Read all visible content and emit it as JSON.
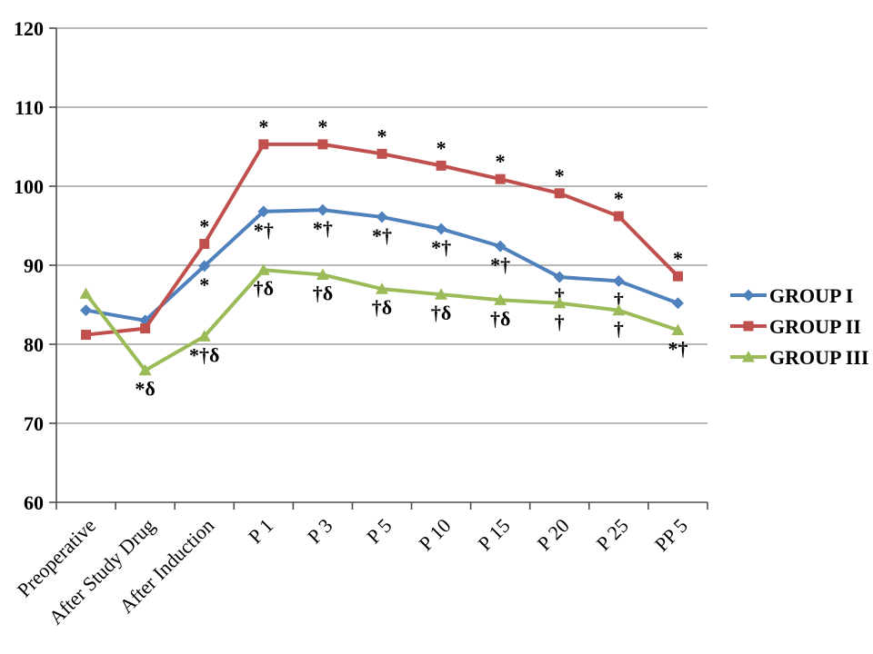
{
  "chart_data": {
    "type": "line",
    "title": "",
    "xlabel": "",
    "ylabel": "",
    "categories": [
      "Preoperative",
      "After Study Drug",
      "After Induction",
      "P 1",
      "P 3",
      "P 5",
      "P 10",
      "P 15",
      "P 20",
      "P 25",
      "PP 5"
    ],
    "y_axis": {
      "min": 60,
      "max": 120,
      "step": 10,
      "tick_labels": [
        "60",
        "70",
        "80",
        "90",
        "100",
        "110",
        "120"
      ]
    },
    "grid": true,
    "gridline_color": "#8e8e8e",
    "axis_color": "#4d4d4d",
    "text_color": "#000000",
    "legend_position": "right",
    "series": [
      {
        "name": "GROUP I",
        "color": "#4F81BD",
        "marker": "diamond",
        "annotation_side": "below",
        "values": [
          84.3,
          83.0,
          89.9,
          96.8,
          97.0,
          96.1,
          94.6,
          92.4,
          88.5,
          88.0,
          85.2
        ],
        "annotations": [
          "",
          "",
          "*",
          "*†",
          "*†",
          "*†",
          "*†",
          "*†",
          "†",
          "†",
          ""
        ]
      },
      {
        "name": "GROUP II",
        "color": "#C0504D",
        "marker": "square",
        "annotation_side": "above",
        "values": [
          81.2,
          82.0,
          92.7,
          105.3,
          105.3,
          104.1,
          102.6,
          100.9,
          99.1,
          96.2,
          88.6
        ],
        "annotations": [
          "",
          "",
          "*",
          "*",
          "*",
          "*",
          "*",
          "*",
          "*",
          "*",
          "*"
        ]
      },
      {
        "name": "GROUP III",
        "color": "#9BBB59",
        "marker": "triangle",
        "annotation_side": "below",
        "values": [
          86.4,
          76.7,
          81.0,
          89.4,
          88.8,
          87.0,
          86.3,
          85.6,
          85.2,
          84.3,
          81.8
        ],
        "annotations": [
          "",
          "*δ",
          "*†δ",
          "†δ",
          "†δ",
          "†δ",
          "†δ",
          "†δ",
          "†",
          "†",
          "*†"
        ]
      }
    ]
  }
}
